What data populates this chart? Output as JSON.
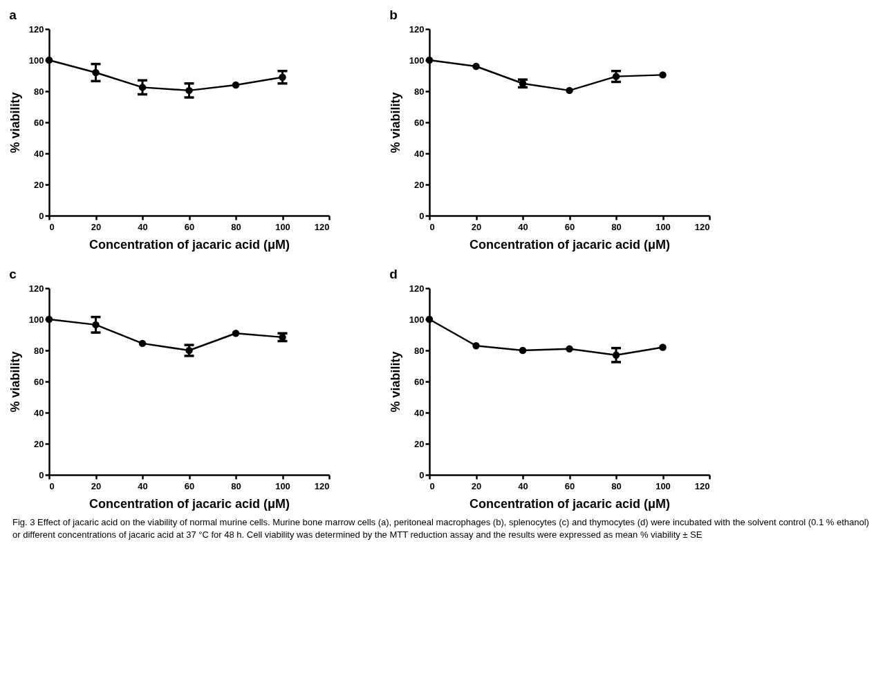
{
  "chart_data": [
    {
      "type": "line",
      "title": "a",
      "xlabel": "Concentration of jacaric acid (μM)",
      "ylabel": "% viability",
      "x": [
        0,
        20,
        40,
        60,
        80,
        100
      ],
      "xlim": [
        0,
        120
      ],
      "xticks": [
        0,
        20,
        40,
        60,
        80,
        100,
        120
      ],
      "ylim": [
        0,
        120
      ],
      "yticks": [
        0,
        20,
        40,
        60,
        80,
        100,
        120
      ],
      "marker": "circle",
      "grid": false,
      "series": [
        {
          "color": "#000000",
          "values": [
            100,
            92,
            82.5,
            80.5,
            84,
            89
          ],
          "errors": [
            null,
            5.5,
            4.5,
            4.5,
            null,
            4
          ]
        }
      ]
    },
    {
      "type": "line",
      "title": "b",
      "xlabel": "Concentration of jacaric acid (μM)",
      "ylabel": "% viability",
      "x": [
        0,
        20,
        40,
        60,
        80,
        100
      ],
      "xlim": [
        0,
        120
      ],
      "xticks": [
        0,
        20,
        40,
        60,
        80,
        100,
        120
      ],
      "ylim": [
        0,
        120
      ],
      "yticks": [
        0,
        20,
        40,
        60,
        80,
        100,
        120
      ],
      "marker": "circle",
      "grid": false,
      "series": [
        {
          "color": "#000000",
          "values": [
            100,
            96,
            85,
            80.5,
            89.5,
            90.5
          ],
          "errors": [
            null,
            null,
            2.5,
            null,
            3.5,
            null
          ]
        }
      ]
    },
    {
      "type": "line",
      "title": "c",
      "xlabel": "Concentration of jacaric acid (μM)",
      "ylabel": "% viability",
      "x": [
        0,
        20,
        40,
        60,
        80,
        100
      ],
      "xlim": [
        0,
        120
      ],
      "xticks": [
        0,
        20,
        40,
        60,
        80,
        100,
        120
      ],
      "ylim": [
        0,
        120
      ],
      "yticks": [
        0,
        20,
        40,
        60,
        80,
        100,
        120
      ],
      "marker": "circle",
      "grid": false,
      "series": [
        {
          "color": "#000000",
          "values": [
            100,
            96.5,
            84.5,
            80,
            91,
            88.5
          ],
          "errors": [
            null,
            5,
            null,
            3.5,
            null,
            2.5
          ]
        }
      ]
    },
    {
      "type": "line",
      "title": "d",
      "xlabel": "Concentration of jacaric acid (μM)",
      "ylabel": "% viability",
      "x": [
        0,
        20,
        40,
        60,
        80,
        100
      ],
      "xlim": [
        0,
        120
      ],
      "xticks": [
        0,
        20,
        40,
        60,
        80,
        100,
        120
      ],
      "ylim": [
        0,
        120
      ],
      "yticks": [
        0,
        20,
        40,
        60,
        80,
        100,
        120
      ],
      "marker": "circle",
      "grid": false,
      "series": [
        {
          "color": "#000000",
          "values": [
            100,
            83,
            80,
            81,
            77,
            82
          ],
          "errors": [
            null,
            null,
            null,
            null,
            4.5,
            null
          ]
        }
      ],
      "annotations": [
        "Fig. 3  Effect of jacaric acid on the viability of normal murine cells. Murine bone marrow cells (a), peritoneal macrophages (b), splenocytes (c) and thymocytes (d) were incubated with the solvent control (0.1 % ethanol) or different concentrations of jacaric acid at 37 °C for 48 h. Cell viability was determined by the MTT reduction assay and the results were expressed as mean % viability ± SE"
      ]
    }
  ]
}
